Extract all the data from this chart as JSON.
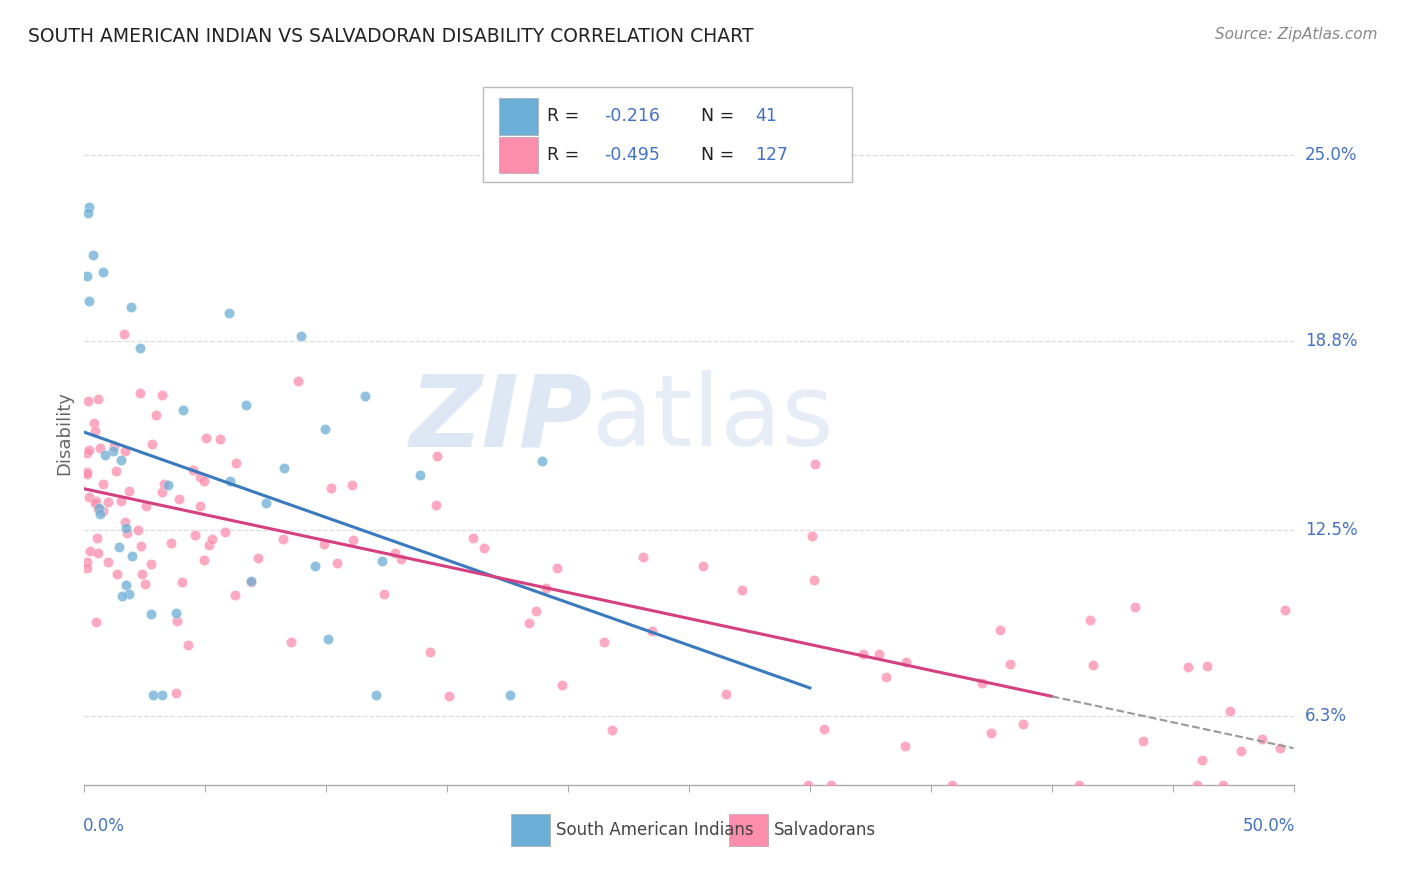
{
  "title": "SOUTH AMERICAN INDIAN VS SALVADORAN DISABILITY CORRELATION CHART",
  "source": "Source: ZipAtlas.com",
  "ylabel": "Disability",
  "legend_label1": "South American Indians",
  "legend_label2": "Salvadorans",
  "R1": -0.216,
  "N1": 41,
  "R2": -0.495,
  "N2": 127,
  "watermark_text": "ZIP",
  "watermark_text2": "atlas",
  "blue_dot_color": "#6baed6",
  "pink_dot_color": "#fc8dac",
  "trend_blue": "#3a7abf",
  "trend_pink": "#d44080",
  "label_color": "#4472c4",
  "xlim": [
    0.0,
    0.5
  ],
  "ylim": [
    0.04,
    0.275
  ],
  "ytick_vals": [
    0.063,
    0.125,
    0.188,
    0.25
  ],
  "ytick_labels": [
    "6.3%",
    "12.5%",
    "18.8%",
    "25.0%"
  ],
  "grid_color": "#dddddd",
  "spine_color": "#aaaaaa"
}
